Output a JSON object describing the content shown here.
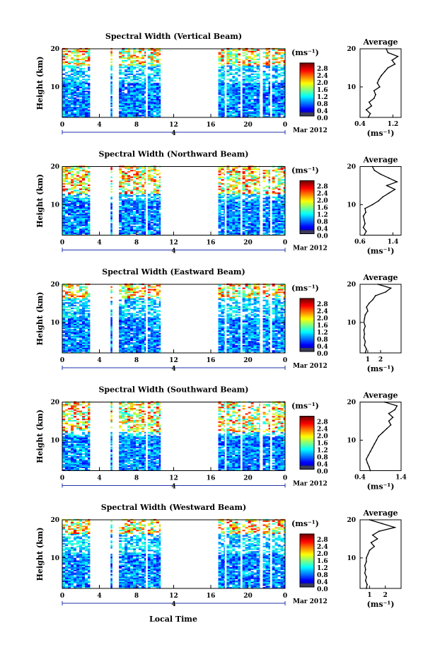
{
  "figure": {
    "xlabel": "Local Time",
    "colorbar_unit": "(ms⁻¹)",
    "avg_title": "Average",
    "avg_unit": "(ms⁻¹)",
    "ylabel": "Height (km)",
    "date_label": "Mar 2012",
    "day_label": "4"
  },
  "chart_data": [
    {
      "type": "heatmap",
      "title": "Spectral Width (Vertical Beam)",
      "ylabel": "Height (km)",
      "x_ticks": [
        "0",
        "4",
        "8",
        "12",
        "16",
        "20",
        "0"
      ],
      "xlim": [
        0,
        24
      ],
      "y_ticks": [
        "20",
        "10"
      ],
      "ylim": [
        2,
        20
      ],
      "colorbar_ticks": [
        "2.8",
        "2.4",
        "2.0",
        "1.6",
        "1.2",
        "0.8",
        "0.4",
        "0.0"
      ],
      "colorbar_range": [
        0.0,
        3.0
      ],
      "data_segments": [
        [
          0,
          3
        ],
        [
          5.2,
          5.4
        ],
        [
          6.1,
          9.0
        ],
        [
          9.2,
          10.6
        ],
        [
          16.8,
          17.5
        ],
        [
          17.7,
          19.2
        ],
        [
          19.4,
          21.3
        ],
        [
          21.6,
          22.4
        ],
        [
          22.6,
          24
        ]
      ],
      "high_width_layer_km": [
        15.5,
        20
      ],
      "profile": {
        "title": "Average",
        "x_ticks": [
          "0.4",
          "1.2"
        ],
        "xlim": [
          0.4,
          1.4
        ],
        "y_ticks": [
          "20",
          "10"
        ],
        "ylim": [
          2,
          20
        ],
        "height_km": [
          2,
          3,
          4,
          5,
          6,
          7,
          8,
          9,
          10,
          11,
          12,
          13,
          14,
          15,
          16,
          17,
          18,
          19,
          20
        ],
        "width_ms": [
          0.6,
          0.65,
          0.55,
          0.68,
          0.62,
          0.74,
          0.78,
          0.74,
          0.88,
          0.82,
          0.86,
          0.92,
          1.0,
          1.08,
          1.25,
          1.18,
          1.32,
          1.08,
          1.04
        ]
      }
    },
    {
      "type": "heatmap",
      "title": "Spectral Width (Northward Beam)",
      "ylabel": "Height (km)",
      "x_ticks": [
        "0",
        "4",
        "8",
        "12",
        "16",
        "20",
        "0"
      ],
      "xlim": [
        0,
        24
      ],
      "y_ticks": [
        "20",
        "10"
      ],
      "ylim": [
        2,
        20
      ],
      "colorbar_ticks": [
        "2.8",
        "2.4",
        "2.0",
        "1.6",
        "1.2",
        "0.8",
        "0.4",
        "0.0"
      ],
      "colorbar_range": [
        0.0,
        3.0
      ],
      "data_segments": [
        [
          0,
          3
        ],
        [
          5.2,
          5.4
        ],
        [
          6.1,
          9.0
        ],
        [
          9.2,
          10.6
        ],
        [
          16.8,
          17.5
        ],
        [
          17.7,
          19.2
        ],
        [
          19.4,
          21.3
        ],
        [
          21.6,
          22.4
        ],
        [
          22.6,
          24
        ]
      ],
      "high_width_layer_km": [
        12.5,
        20
      ],
      "profile": {
        "title": "Average",
        "x_ticks": [
          "0.6",
          "1.4"
        ],
        "xlim": [
          0.6,
          1.6
        ],
        "y_ticks": [
          "20",
          "10"
        ],
        "ylim": [
          2,
          20
        ],
        "height_km": [
          2,
          3,
          4,
          5,
          6,
          7,
          8,
          9,
          10,
          11,
          12,
          13,
          14,
          15,
          16,
          17,
          18,
          19,
          20
        ],
        "width_ms": [
          0.7,
          0.75,
          0.68,
          0.72,
          0.7,
          0.68,
          0.74,
          0.72,
          0.9,
          1.05,
          1.15,
          1.3,
          1.45,
          1.25,
          1.5,
          1.3,
          1.1,
          0.95,
          0.9
        ]
      }
    },
    {
      "type": "heatmap",
      "title": "Spectral Width (Eastward Beam)",
      "ylabel": "Height (km)",
      "x_ticks": [
        "0",
        "4",
        "8",
        "12",
        "16",
        "20",
        "0"
      ],
      "xlim": [
        0,
        24
      ],
      "y_ticks": [
        "20",
        "10"
      ],
      "ylim": [
        2,
        20
      ],
      "colorbar_ticks": [
        "2.8",
        "2.4",
        "2.0",
        "1.6",
        "1.2",
        "0.8",
        "0.4",
        "0.0"
      ],
      "colorbar_range": [
        0.0,
        3.0
      ],
      "data_segments": [
        [
          0,
          3
        ],
        [
          5.2,
          5.4
        ],
        [
          6.1,
          9.0
        ],
        [
          9.2,
          10.6
        ],
        [
          16.8,
          17.5
        ],
        [
          17.7,
          19.2
        ],
        [
          19.4,
          21.3
        ],
        [
          21.6,
          22.4
        ],
        [
          22.6,
          24
        ]
      ],
      "high_width_layer_km": [
        16.0,
        20
      ],
      "profile": {
        "title": "Average",
        "x_ticks": [
          "1",
          "2"
        ],
        "xlim": [
          0.4,
          3.6
        ],
        "y_ticks": [
          "20",
          "10"
        ],
        "ylim": [
          2,
          20
        ],
        "height_km": [
          2,
          3,
          4,
          5,
          6,
          7,
          8,
          9,
          10,
          11,
          12,
          13,
          14,
          15,
          16,
          17,
          18,
          19,
          20
        ],
        "width_ms": [
          0.8,
          0.9,
          0.75,
          0.8,
          0.7,
          0.75,
          0.7,
          0.8,
          0.7,
          0.75,
          0.8,
          1.0,
          0.9,
          1.1,
          1.4,
          1.6,
          2.4,
          2.8,
          1.8
        ]
      }
    },
    {
      "type": "heatmap",
      "title": "Spectral Width (Southward Beam)",
      "ylabel": "Height (km)",
      "x_ticks": [
        "0",
        "4",
        "8",
        "12",
        "16",
        "20",
        "0"
      ],
      "xlim": [
        0,
        24
      ],
      "y_ticks": [
        "20",
        "10"
      ],
      "ylim": [
        2,
        20
      ],
      "colorbar_ticks": [
        "2.8",
        "2.4",
        "2.0",
        "1.6",
        "1.2",
        "0.8",
        "0.4",
        "0.0"
      ],
      "colorbar_range": [
        0.0,
        3.0
      ],
      "data_segments": [
        [
          0,
          3
        ],
        [
          5.2,
          5.4
        ],
        [
          6.1,
          9.0
        ],
        [
          9.2,
          10.6
        ],
        [
          16.8,
          17.5
        ],
        [
          17.7,
          19.2
        ],
        [
          19.4,
          21.3
        ],
        [
          21.6,
          22.4
        ],
        [
          22.6,
          24
        ]
      ],
      "high_width_layer_km": [
        12.0,
        20
      ],
      "profile": {
        "title": "Average",
        "x_ticks": [
          "0.4",
          "1.4"
        ],
        "xlim": [
          0.4,
          1.4
        ],
        "y_ticks": [
          "20",
          "10"
        ],
        "ylim": [
          2,
          20
        ],
        "height_km": [
          2,
          3,
          4,
          5,
          6,
          7,
          8,
          9,
          10,
          11,
          12,
          13,
          14,
          15,
          16,
          17,
          18,
          19,
          20
        ],
        "width_ms": [
          0.65,
          0.62,
          0.58,
          0.55,
          0.6,
          0.65,
          0.7,
          0.75,
          0.8,
          0.85,
          0.95,
          1.05,
          1.15,
          1.1,
          1.2,
          1.1,
          1.25,
          1.3,
          1.0
        ]
      }
    },
    {
      "type": "heatmap",
      "title": "Spectral Width (Westward Beam)",
      "ylabel": "Height (km)",
      "x_ticks": [
        "0",
        "4",
        "8",
        "12",
        "16",
        "20",
        "0"
      ],
      "xlim": [
        0,
        24
      ],
      "y_ticks": [
        "20",
        "10"
      ],
      "ylim": [
        2,
        20
      ],
      "colorbar_ticks": [
        "2.8",
        "2.4",
        "2.0",
        "1.6",
        "1.2",
        "0.8",
        "0.4",
        "0.0"
      ],
      "colorbar_range": [
        0.0,
        3.0
      ],
      "data_segments": [
        [
          0,
          3
        ],
        [
          5.2,
          5.4
        ],
        [
          6.1,
          9.0
        ],
        [
          9.2,
          10.6
        ],
        [
          16.8,
          17.5
        ],
        [
          17.7,
          19.2
        ],
        [
          19.4,
          21.3
        ],
        [
          21.6,
          22.4
        ],
        [
          22.6,
          24
        ]
      ],
      "high_width_layer_km": [
        16.0,
        20
      ],
      "profile": {
        "title": "Average",
        "x_ticks": [
          "1",
          "2"
        ],
        "xlim": [
          0.4,
          3.0
        ],
        "y_ticks": [
          "20",
          "10"
        ],
        "ylim": [
          2,
          20
        ],
        "height_km": [
          2,
          3,
          4,
          5,
          6,
          7,
          8,
          9,
          10,
          11,
          12,
          13,
          14,
          15,
          16,
          17,
          18,
          19,
          20
        ],
        "width_ms": [
          0.8,
          0.85,
          0.75,
          0.8,
          0.7,
          0.75,
          0.7,
          0.8,
          0.8,
          0.9,
          1.0,
          1.3,
          1.1,
          1.5,
          1.2,
          1.6,
          2.6,
          1.8,
          1.0
        ]
      }
    }
  ]
}
